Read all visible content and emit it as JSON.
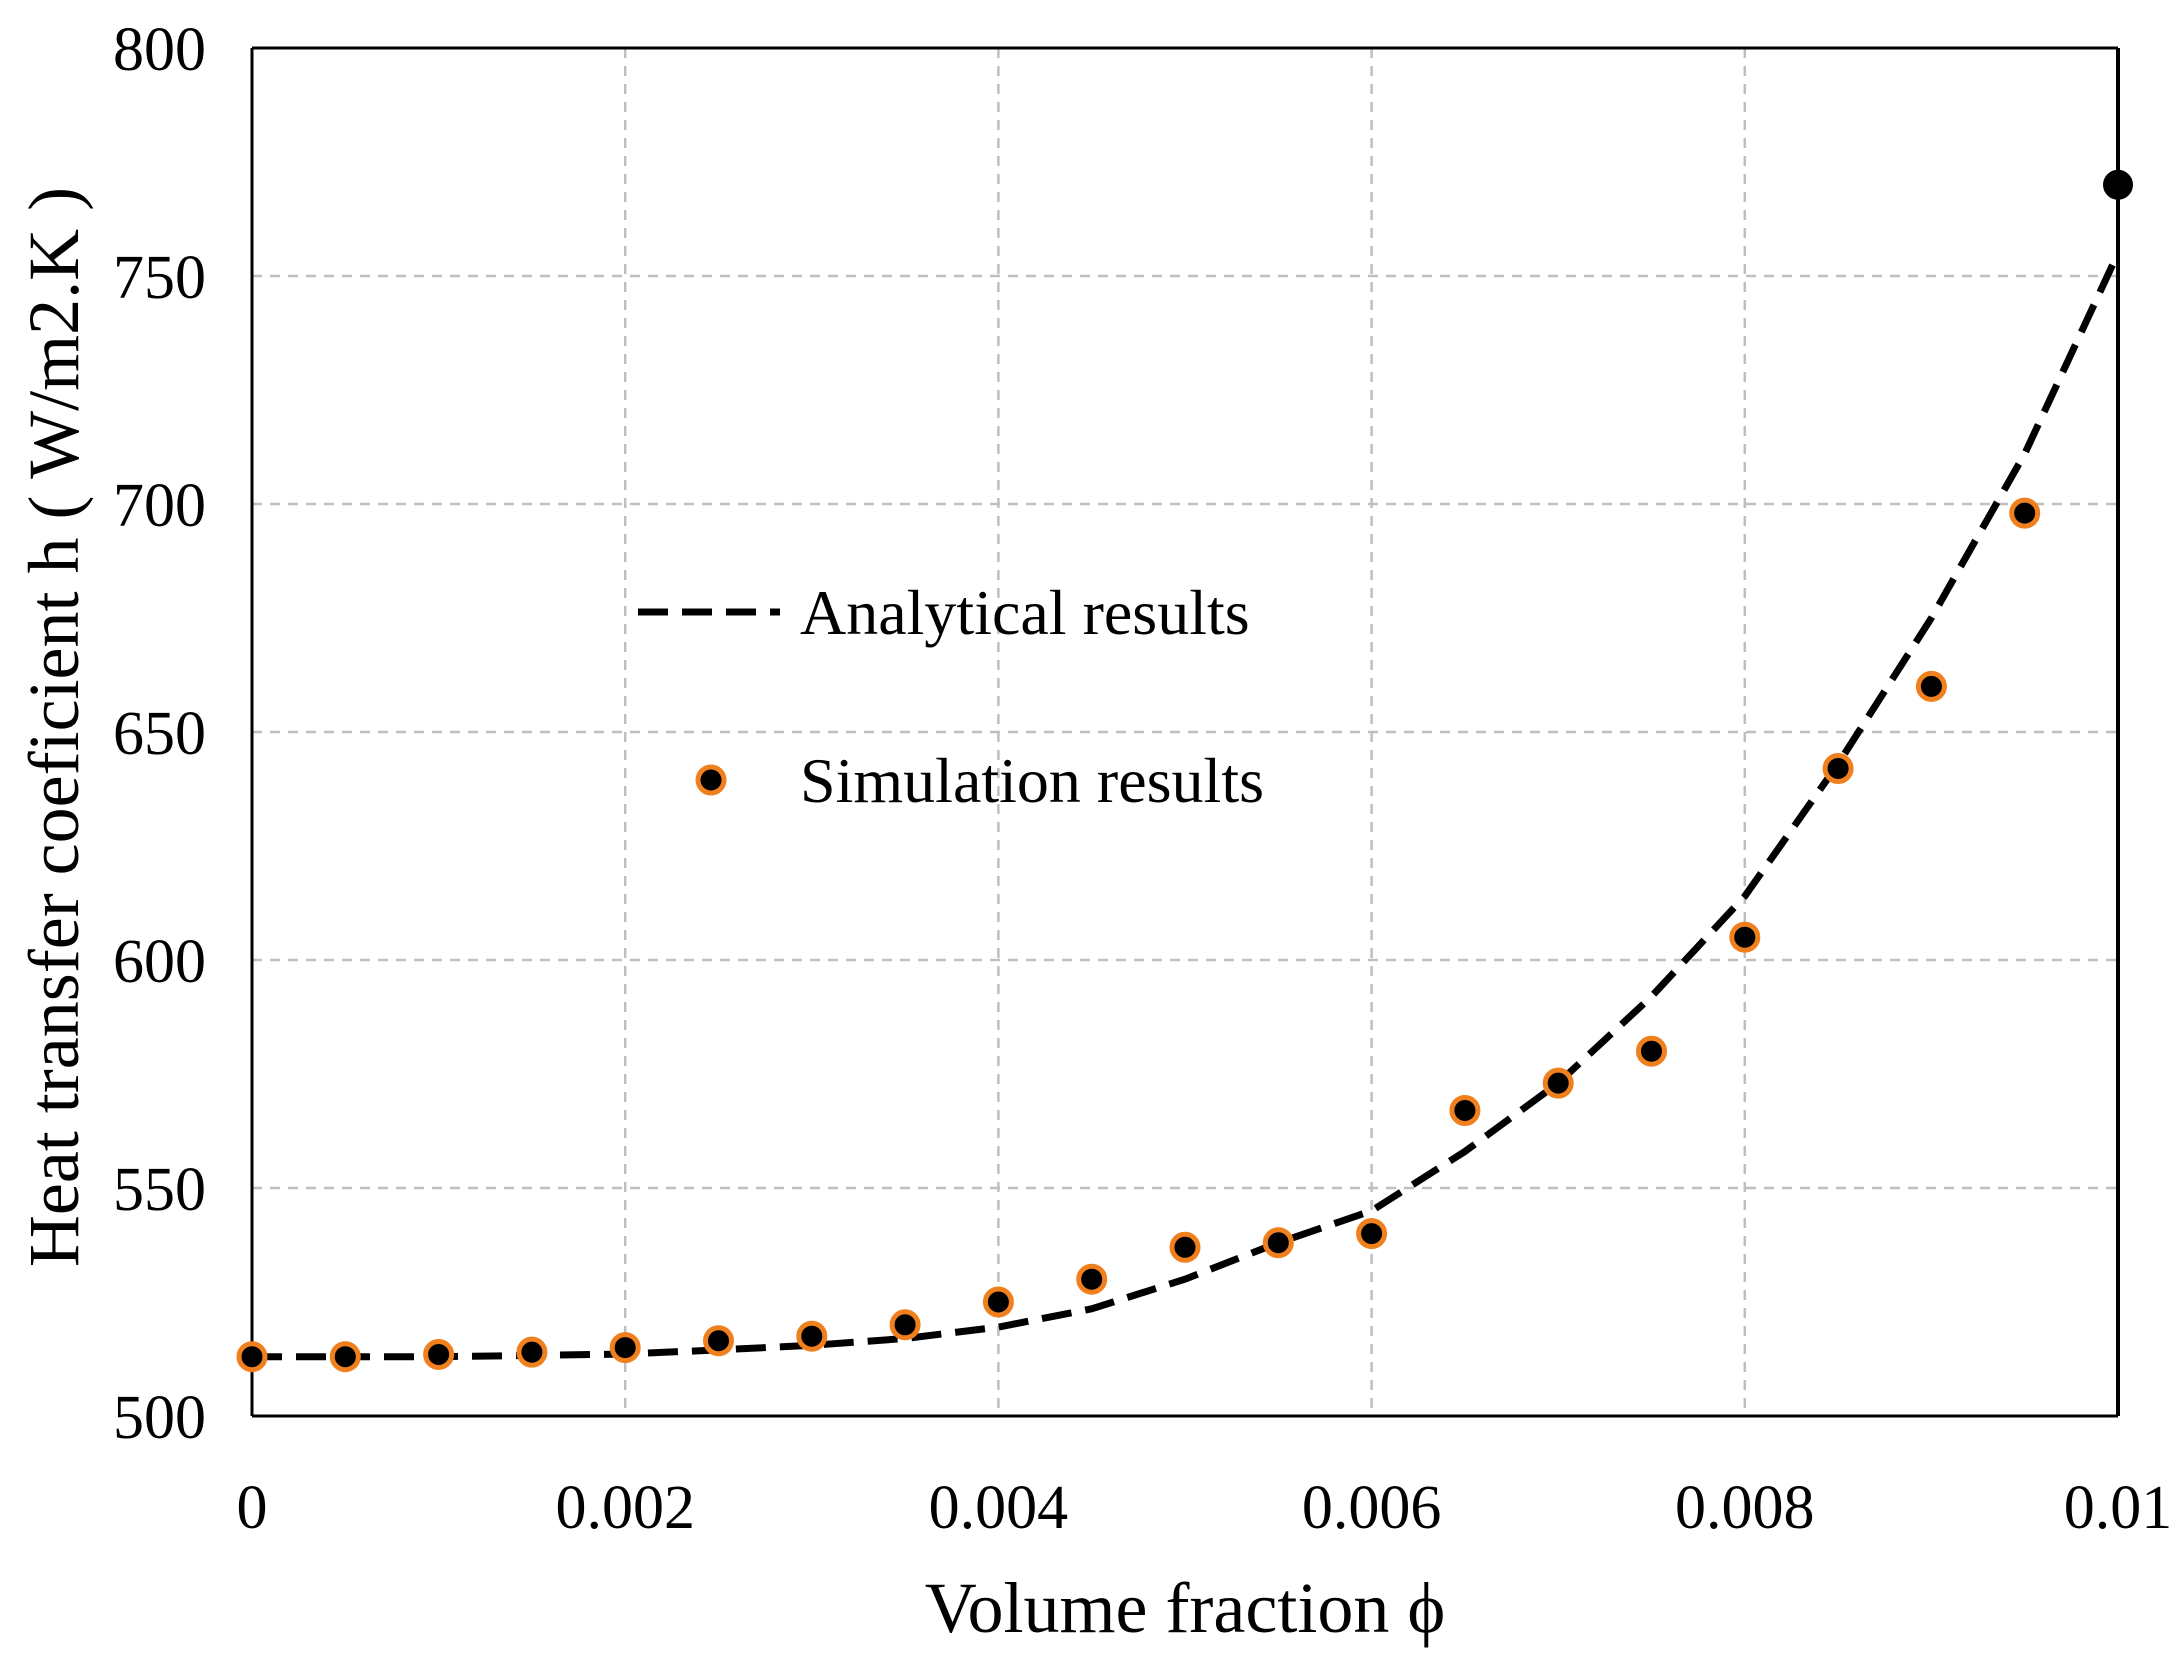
{
  "chart_data": {
    "type": "scatter",
    "title": "",
    "xlabel": "Volume fraction ϕ",
    "ylabel": "Heat transfer coeficient h ( W/m2.K )",
    "xlim": [
      0,
      0.01
    ],
    "ylim": [
      500,
      800
    ],
    "xticks": [
      0,
      0.002,
      0.004,
      0.006,
      0.008,
      0.01
    ],
    "xtick_labels": [
      "0",
      "0.002",
      "0.004",
      "0.006",
      "0.008",
      "0.01"
    ],
    "yticks": [
      500,
      550,
      600,
      650,
      700,
      750,
      800
    ],
    "ytick_labels": [
      "500",
      "550",
      "600",
      "650",
      "700",
      "750",
      "800"
    ],
    "grid": true,
    "legend_position": "center-left",
    "colors": {
      "marker_fill": "#000000",
      "marker_edge": "#f07f1e",
      "grid": "#bfbfbf",
      "line": "#000000"
    },
    "series": [
      {
        "name": "Analytical results",
        "kind": "dashed-line",
        "x": [
          0,
          0.0005,
          0.001,
          0.0015,
          0.002,
          0.0025,
          0.003,
          0.0035,
          0.004,
          0.0045,
          0.005,
          0.0055,
          0.006,
          0.0065,
          0.007,
          0.0075,
          0.008,
          0.0085,
          0.009,
          0.0095,
          0.01
        ],
        "y": [
          513,
          513,
          513,
          513.3,
          513.6,
          514.5,
          515.5,
          517,
          519.5,
          523.5,
          530,
          538,
          545,
          558,
          573,
          592,
          614,
          643,
          675,
          711,
          755
        ]
      },
      {
        "name": "Simulation results",
        "kind": "markers",
        "x": [
          0,
          0.0005,
          0.001,
          0.0015,
          0.002,
          0.0025,
          0.003,
          0.0035,
          0.004,
          0.0045,
          0.005,
          0.0055,
          0.006,
          0.0065,
          0.007,
          0.0075,
          0.008,
          0.0085,
          0.009,
          0.0095,
          0.01
        ],
        "y": [
          513,
          513,
          513.5,
          514,
          515,
          516.5,
          517.5,
          520,
          525,
          530,
          537,
          538,
          540,
          567,
          573,
          580,
          605,
          642,
          660,
          698,
          770
        ]
      }
    ]
  }
}
